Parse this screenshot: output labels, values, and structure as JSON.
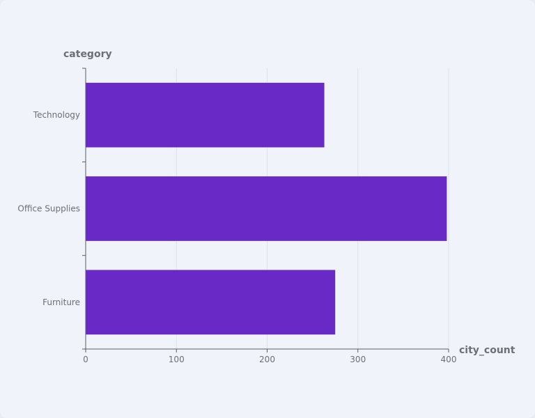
{
  "chart_data": {
    "type": "bar",
    "orientation": "horizontal",
    "categories": [
      "Technology",
      "Office Supplies",
      "Furniture"
    ],
    "values": [
      263,
      398,
      275
    ],
    "xlabel": "city_count",
    "ylabel": "category",
    "xlim": [
      0,
      400
    ],
    "xticks": [
      "0",
      "100",
      "200",
      "300",
      "400"
    ],
    "grid": true,
    "bar_color": "#6829c7"
  }
}
